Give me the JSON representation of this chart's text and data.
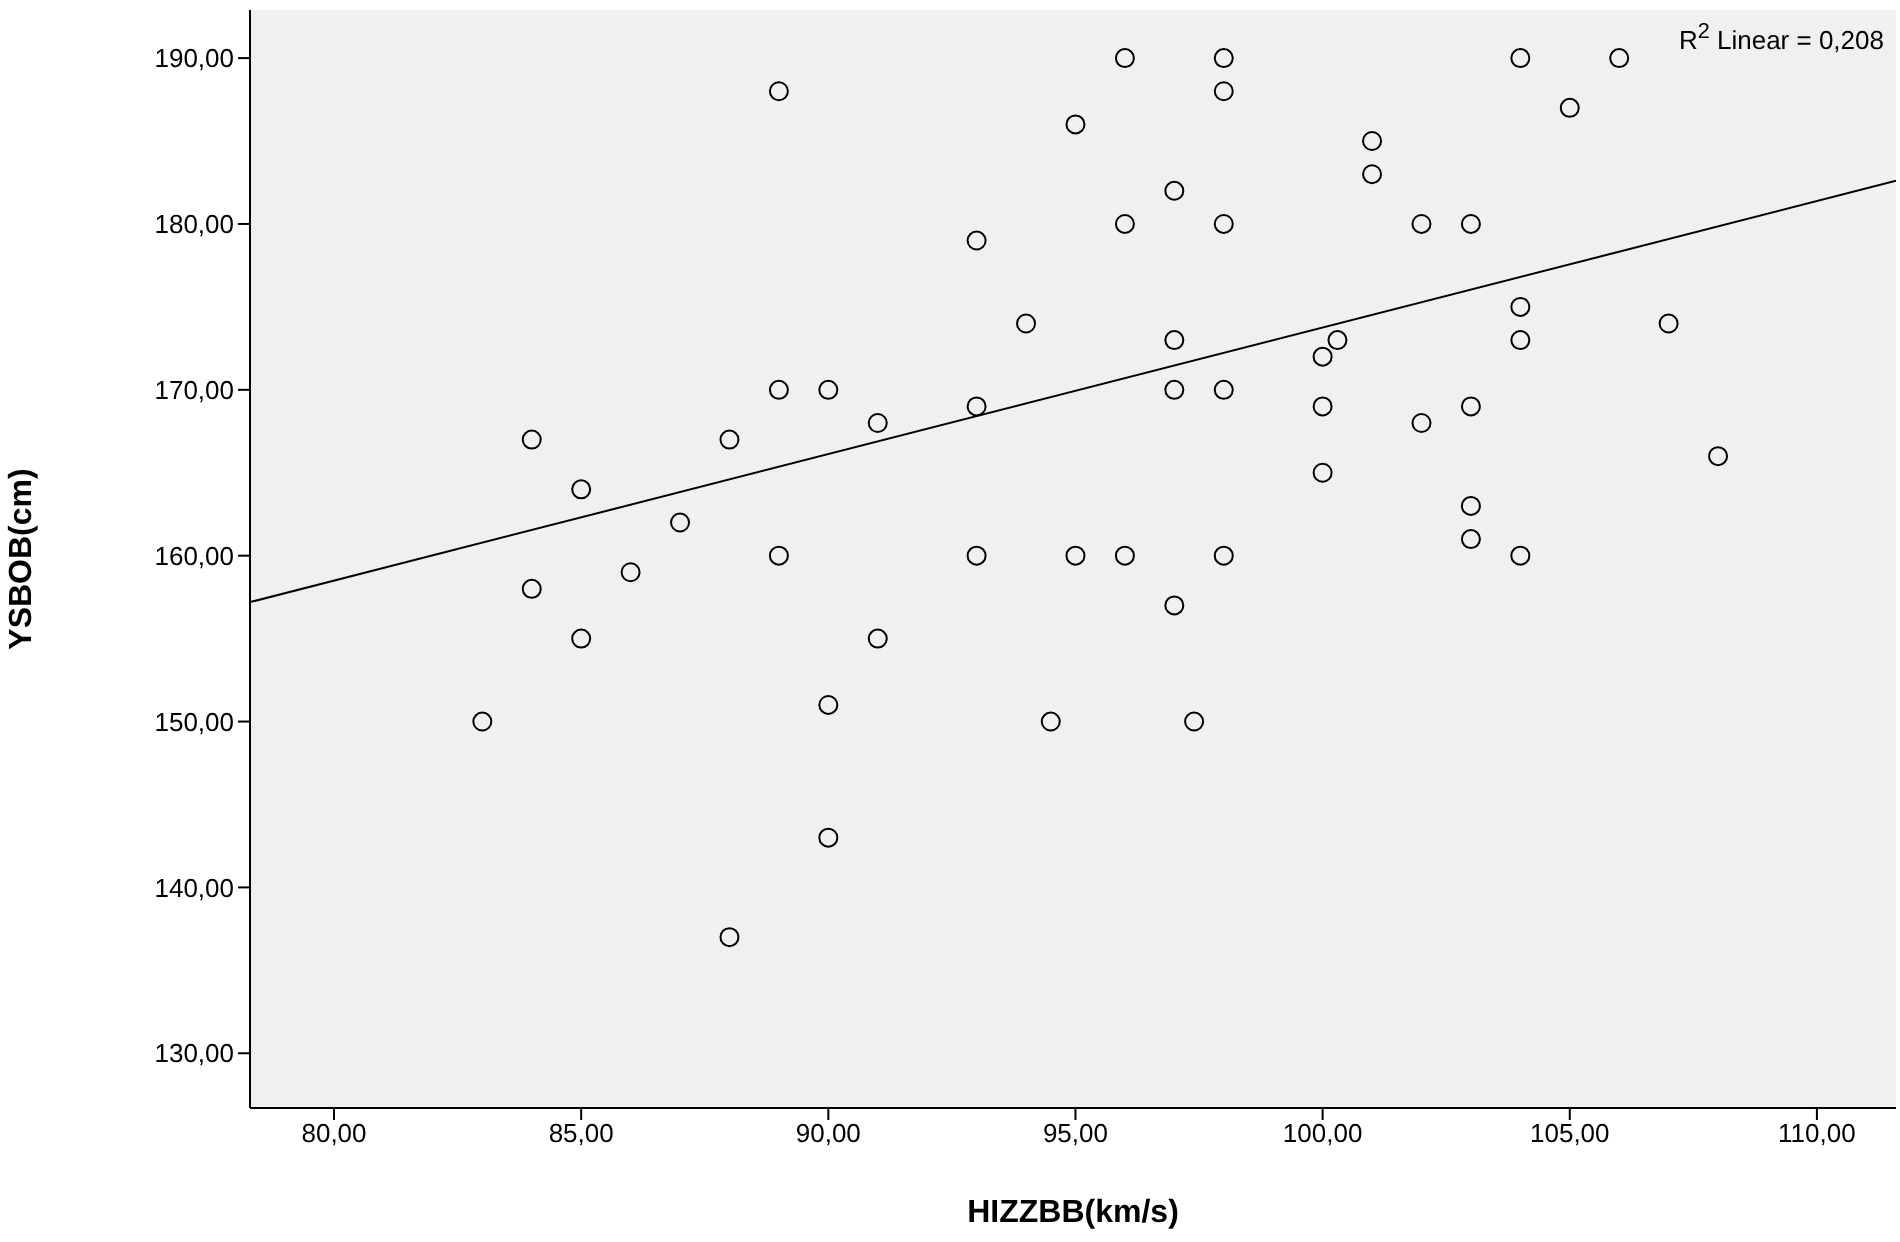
{
  "chart_data": {
    "type": "scatter",
    "xlabel": "HIZZBB(km/s)",
    "ylabel": "YSBOB(cm)",
    "annotations": [
      "R$^{2}$ Linear = 0,208"
    ],
    "xlim": [
      78.3,
      111.6
    ],
    "ylim": [
      126.7,
      192.9
    ],
    "xticks": [
      {
        "value": 80,
        "label": "80,00"
      },
      {
        "value": 85,
        "label": "85,00"
      },
      {
        "value": 90,
        "label": "90,00"
      },
      {
        "value": 95,
        "label": "95,00"
      },
      {
        "value": 100,
        "label": "100,00"
      },
      {
        "value": 105,
        "label": "105,00"
      },
      {
        "value": 110,
        "label": "110,00"
      }
    ],
    "yticks": [
      {
        "value": 130,
        "label": "130,00"
      },
      {
        "value": 140,
        "label": "140,00"
      },
      {
        "value": 150,
        "label": "150,00"
      },
      {
        "value": 160,
        "label": "160,00"
      },
      {
        "value": 170,
        "label": "170,00"
      },
      {
        "value": 180,
        "label": "180,00"
      },
      {
        "value": 190,
        "label": "190,00"
      }
    ],
    "grid": false,
    "legend": false,
    "marker": "circle",
    "series": [
      {
        "color": "#000000",
        "x": [
          83,
          84,
          84,
          85,
          85,
          86,
          87,
          88,
          88,
          89,
          89,
          89,
          90,
          90,
          90,
          91,
          91,
          93,
          93,
          93,
          94,
          94.5,
          95,
          95,
          96,
          96,
          96,
          97,
          97,
          97,
          97,
          97.4,
          98,
          98,
          98,
          98,
          98,
          100,
          100,
          100,
          100.3,
          101,
          101,
          102,
          102,
          103,
          103,
          103,
          103,
          104,
          104,
          104,
          104,
          105,
          106,
          107,
          108
        ],
        "values": [
          150,
          167,
          158,
          164,
          155,
          159,
          162,
          167,
          137,
          188,
          170,
          160,
          170,
          151,
          143,
          168,
          155,
          179,
          169,
          160,
          174,
          150,
          186,
          160,
          190,
          180,
          160,
          173,
          170,
          182,
          157,
          150,
          190,
          188,
          180,
          170,
          160,
          172,
          169,
          165,
          173,
          185,
          183,
          180,
          168,
          180,
          169,
          163,
          161,
          190,
          175,
          173,
          160,
          187,
          190,
          174,
          166
        ]
      },
      {
        "type": "line",
        "color": "#000000",
        "x": [
          78.3,
          111.6
        ],
        "values": [
          157.2,
          182.6
        ],
        "marker": "none",
        "line_style": "solid"
      }
    ]
  }
}
